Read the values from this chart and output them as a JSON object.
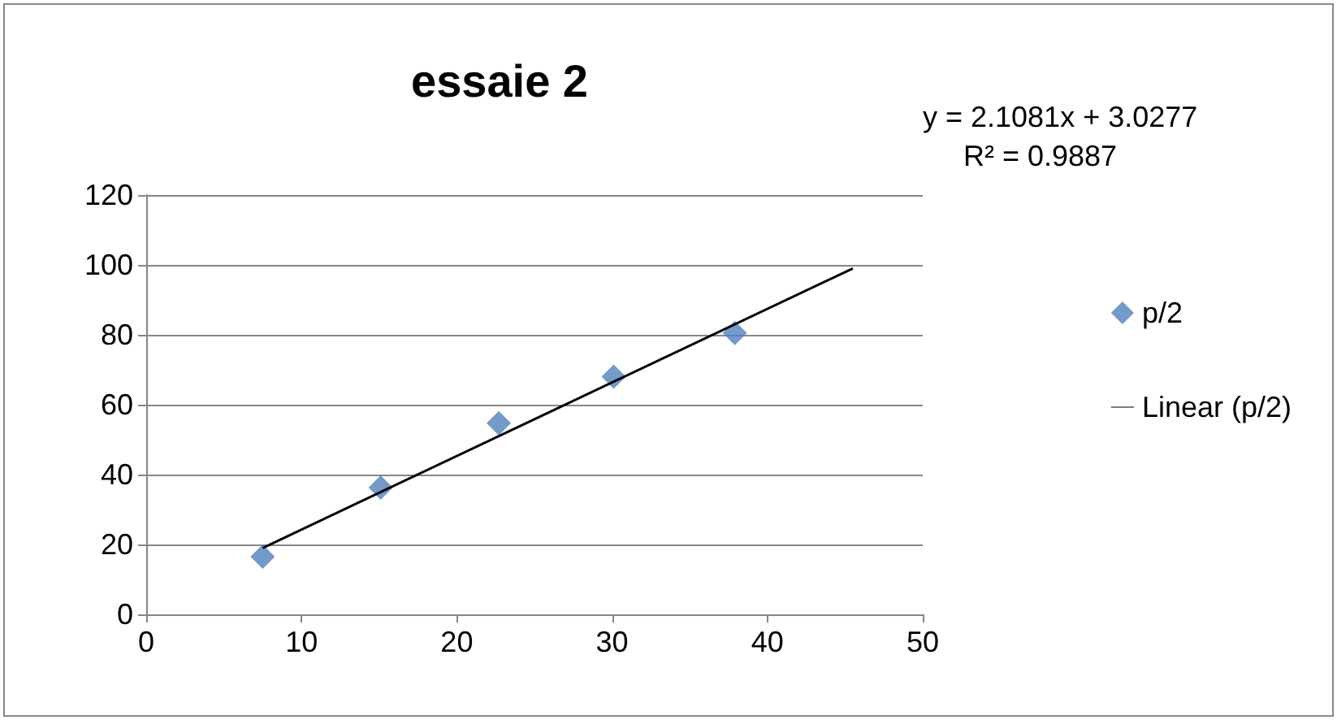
{
  "chart_data": {
    "type": "scatter",
    "title": "essaie 2",
    "annotations": [
      "y = 2.1081x + 3.0277",
      "R² = 0.9887"
    ],
    "x": [
      7.5,
      15.1,
      22.7,
      30.1,
      37.9
    ],
    "series": [
      {
        "name": "p/2",
        "color": "#4f81bd",
        "marker": "diamond",
        "values": [
          16.5,
          36.3,
          54.7,
          68,
          80.5
        ]
      },
      {
        "name": "Linear (p/2)",
        "type": "line",
        "marker": "none",
        "color": "#000000",
        "x": [
          7.5,
          45.5
        ],
        "values": [
          19,
          99
        ]
      }
    ],
    "xlim": [
      0,
      50
    ],
    "xticks": [
      0,
      10,
      20,
      30,
      40,
      50
    ],
    "ylim": [
      0,
      120
    ],
    "yticks": [
      0,
      20,
      40,
      60,
      80,
      100,
      120
    ],
    "grid": "y",
    "legend": "right"
  }
}
